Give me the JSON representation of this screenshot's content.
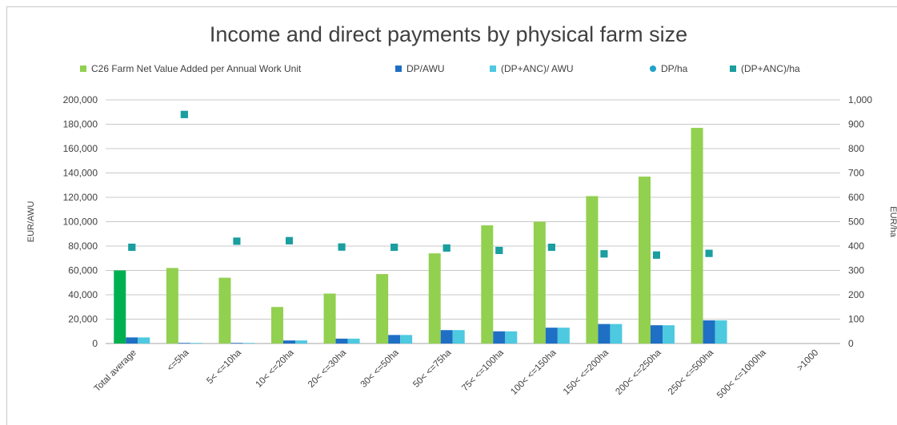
{
  "chart_data": {
    "type": "bar",
    "title": "Income and direct payments by physical farm size",
    "ylabel": "EUR/AWU",
    "y2label": "EUR/ha",
    "ylim": [
      0,
      200000
    ],
    "y2lim": [
      0,
      1000
    ],
    "yticks": [
      "0",
      "20,000",
      "40,000",
      "60,000",
      "80,000",
      "100,000",
      "120,000",
      "140,000",
      "160,000",
      "180,000",
      "200,000"
    ],
    "y2ticks": [
      "0",
      "100",
      "200",
      "300",
      "400",
      "500",
      "600",
      "700",
      "800",
      "900",
      "1,000"
    ],
    "grid": true,
    "legend_position": "top",
    "categories": [
      "Total average",
      "<=5ha",
      "5< <=10ha",
      "10< <=20ha",
      "20< <=30ha",
      "30< <=50ha",
      "50< <=75ha",
      "75< <=100ha",
      "100< <=150ha",
      "150< <=200ha",
      "200< <=250ha",
      "250< <=500ha",
      "500< <=1000ha",
      ">1000"
    ],
    "series": [
      {
        "name": "C26 Farm Net Value Added per Annual Work Unit",
        "kind": "bar",
        "axis": "left",
        "color": "#92d050",
        "highlight_color": "#00b050",
        "values": [
          60000,
          62000,
          54000,
          30000,
          41000,
          57000,
          74000,
          97000,
          100000,
          121000,
          137000,
          177000,
          null,
          null
        ]
      },
      {
        "name": "DP/AWU",
        "kind": "bar",
        "axis": "left",
        "color": "#1f6fc5",
        "values": [
          5000,
          500,
          500,
          2500,
          4000,
          7000,
          11000,
          10000,
          13000,
          16000,
          15000,
          19000,
          null,
          null
        ]
      },
      {
        "name": "(DP+ANC)/ AWU",
        "kind": "bar",
        "axis": "left",
        "color": "#4dc9e0",
        "values": [
          5000,
          500,
          500,
          2500,
          4000,
          7000,
          11000,
          10000,
          13000,
          16000,
          15000,
          19000,
          null,
          null
        ]
      },
      {
        "name": "DP/ha",
        "kind": "marker",
        "axis": "right",
        "color": "#1fa3c8",
        "values": [
          395,
          940,
          420,
          422,
          396,
          395,
          392,
          382,
          395,
          368,
          363,
          370,
          null,
          null
        ]
      },
      {
        "name": "(DP+ANC)/ha",
        "kind": "marker",
        "axis": "right",
        "color": "#1a9e9e",
        "values": [
          395,
          940,
          420,
          422,
          396,
          395,
          392,
          382,
          395,
          368,
          363,
          370,
          null,
          null
        ]
      }
    ]
  }
}
